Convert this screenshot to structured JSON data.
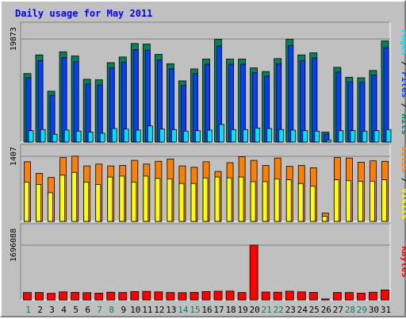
{
  "chart_data": {
    "type": "bar",
    "title": "Daily usage for May 2011",
    "categories": [
      "1",
      "2",
      "3",
      "4",
      "5",
      "6",
      "7",
      "8",
      "9",
      "10",
      "11",
      "12",
      "13",
      "14",
      "15",
      "16",
      "17",
      "18",
      "19",
      "20",
      "21",
      "22",
      "23",
      "24",
      "25",
      "26",
      "27",
      "28",
      "29",
      "30",
      "31"
    ],
    "weekend_days": [
      "1",
      "7",
      "8",
      "14",
      "15",
      "21",
      "22",
      "28",
      "29"
    ],
    "colors": {
      "hits": "#00805c",
      "files": "#0040ff",
      "pages": "#00e0ff",
      "visits": "#ffff00",
      "sites": "#ff8000",
      "kbytes": "#ff0000",
      "weekday_label": "#000000",
      "weekend_label": "#00805c",
      "title": "#0000ff"
    },
    "panels": [
      {
        "id": "hits-files-pages",
        "ylim": [
          0,
          19873
        ],
        "ytick": "19873",
        "side_labels": [
          {
            "text": "Pages",
            "color": "#00e0ff"
          },
          {
            "text": " / ",
            "color": "#000000"
          },
          {
            "text": "Files",
            "color": "#0040ff"
          },
          {
            "text": " / ",
            "color": "#000000"
          },
          {
            "text": "Hits",
            "color": "#00805c"
          }
        ],
        "series": [
          {
            "name": "Hits",
            "color": "#00805c",
            "values": [
              13200,
              16800,
              9800,
              17400,
              16600,
              12100,
              12000,
              15300,
              16400,
              19000,
              18900,
              16900,
              15100,
              11800,
              14100,
              16000,
              19800,
              16000,
              16000,
              14300,
              13600,
              16100,
              19800,
              16800,
              17200,
              1900,
              14400,
              12500,
              12400,
              13800,
              19500
            ]
          },
          {
            "name": "Files",
            "color": "#0040ff",
            "values": [
              12400,
              15700,
              9000,
              16300,
              15500,
              11200,
              11000,
              14300,
              15400,
              17800,
              17700,
              15800,
              14100,
              10900,
              13200,
              15000,
              18500,
              15000,
              15000,
              13400,
              12700,
              15100,
              18600,
              15700,
              16200,
              1500,
              13500,
              11600,
              11500,
              12900,
              18200
            ]
          },
          {
            "name": "Pages",
            "color": "#00e0ff",
            "values": [
              2200,
              2400,
              1500,
              2300,
              2100,
              1900,
              1700,
              2600,
              2500,
              2300,
              3100,
              2500,
              2400,
              2100,
              2200,
              2300,
              3400,
              2400,
              2400,
              2700,
              2600,
              2400,
              2300,
              2200,
              2100,
              400,
              2200,
              2200,
              2100,
              2200,
              2400
            ]
          }
        ]
      },
      {
        "id": "visits-sites",
        "ylim": [
          0,
          1407
        ],
        "ytick": "1407",
        "side_labels": [
          {
            "text": "Sites",
            "color": "#ff8000"
          },
          {
            "text": " / ",
            "color": "#000000"
          },
          {
            "text": "Visits",
            "color": "#ffff00"
          }
        ],
        "series": [
          {
            "name": "Sites",
            "color": "#ff8000",
            "values": [
              1290,
              1040,
              950,
              1380,
              1410,
              1200,
              1240,
              1200,
              1210,
              1320,
              1240,
              1300,
              1350,
              1200,
              1170,
              1290,
              1080,
              1270,
              1400,
              1320,
              1210,
              1370,
              1190,
              1210,
              1160,
              180,
              1380,
              1370,
              1280,
              1310,
              1300
            ]
          },
          {
            "name": "Visits",
            "color": "#ffff00",
            "values": [
              850,
              800,
              620,
              1000,
              1060,
              850,
              800,
              960,
              980,
              850,
              980,
              930,
              920,
              820,
              820,
              940,
              960,
              940,
              960,
              860,
              860,
              920,
              900,
              820,
              760,
              110,
              900,
              880,
              870,
              870,
              900
            ]
          }
        ]
      },
      {
        "id": "kbytes",
        "ylim": [
          0,
          1696088
        ],
        "ytick": "1696088",
        "side_labels": [
          {
            "text": "KBytes",
            "color": "#ff0000"
          }
        ],
        "series": [
          {
            "name": "KBytes",
            "color": "#ff0000",
            "values": [
              230000,
              230000,
              205000,
              250000,
              235000,
              225000,
              210000,
              240000,
              230000,
              260000,
              265000,
              250000,
              230000,
              225000,
              235000,
              260000,
              270000,
              275000,
              230000,
              1696088,
              245000,
              240000,
              270000,
              250000,
              235000,
              30000,
              230000,
              230000,
              210000,
              240000,
              310000
            ]
          }
        ]
      }
    ]
  }
}
